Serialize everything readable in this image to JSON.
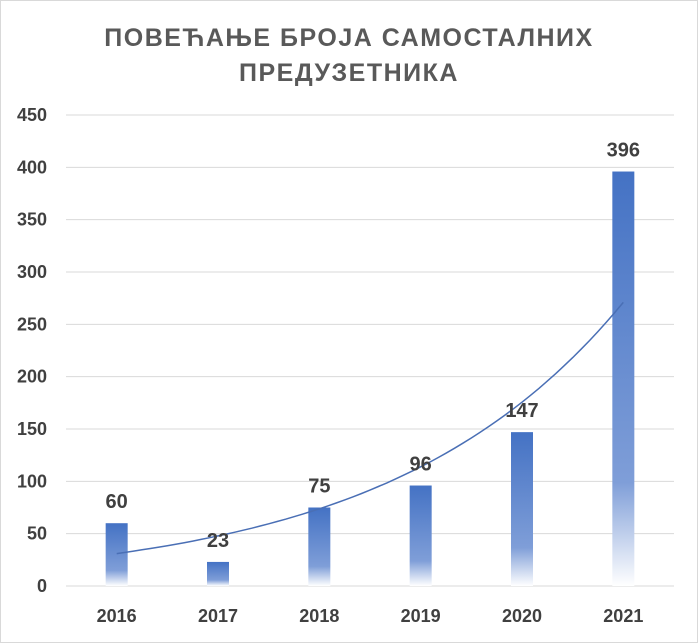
{
  "chart_data": {
    "type": "bar",
    "title_lines": [
      "ПОВЕЋАЊЕ БРОЈА САМОСТАЛНИХ",
      "ПРЕДУЗЕТНИКА"
    ],
    "categories": [
      "2016",
      "2017",
      "2018",
      "2019",
      "2020",
      "2021"
    ],
    "values": [
      60,
      23,
      75,
      96,
      147,
      396
    ],
    "ylim": [
      0,
      450
    ],
    "yticks": [
      0,
      50,
      100,
      150,
      200,
      250,
      300,
      350,
      400,
      450
    ],
    "grid": true,
    "legend": "none",
    "trendline": {
      "type": "exponential",
      "start_value": 31,
      "end_value": 271
    },
    "colors": {
      "bar": "#4472c4",
      "trendline": "#4a6fb5",
      "grid": "#d9d9d9",
      "text": "#404040",
      "title": "#595959"
    }
  }
}
